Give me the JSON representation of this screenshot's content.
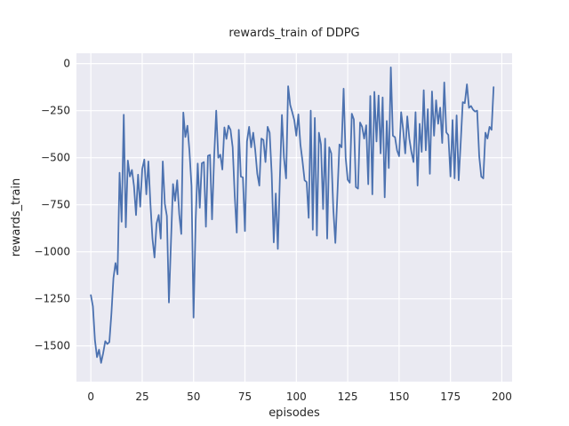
{
  "title": "rewards_train of DDPG",
  "axes": {
    "xlabel": "episodes",
    "ylabel": "rewards_train",
    "x_ticks": [
      {
        "v": 0,
        "label": "0"
      },
      {
        "v": 25,
        "label": "25"
      },
      {
        "v": 50,
        "label": "50"
      },
      {
        "v": 75,
        "label": "75"
      },
      {
        "v": 100,
        "label": "100"
      },
      {
        "v": 125,
        "label": "125"
      },
      {
        "v": 150,
        "label": "150"
      },
      {
        "v": 175,
        "label": "175"
      },
      {
        "v": 200,
        "label": "200"
      }
    ],
    "y_ticks": [
      {
        "v": 0,
        "label": "0"
      },
      {
        "v": -250,
        "label": "−250"
      },
      {
        "v": -500,
        "label": "−500"
      },
      {
        "v": -750,
        "label": "−750"
      },
      {
        "v": -1000,
        "label": "−1000"
      },
      {
        "v": -1250,
        "label": "−1250"
      },
      {
        "v": -1500,
        "label": "−1500"
      }
    ]
  },
  "colors": {
    "line": "#4c72b0",
    "plot_bg": "#eaeaf2",
    "grid": "#ffffff",
    "text": "#262626"
  },
  "chart_data": {
    "type": "line",
    "title": "rewards_train of DDPG",
    "xlabel": "episodes",
    "ylabel": "rewards_train",
    "x_is_episode_index": true,
    "xlim": [
      -7,
      205
    ],
    "ylim": [
      -1690,
      55
    ],
    "grid": true,
    "legend": false,
    "series": [
      {
        "name": "rewards_train",
        "values": [
          -1230,
          -1290,
          -1470,
          -1560,
          -1520,
          -1590,
          -1540,
          -1475,
          -1490,
          -1480,
          -1330,
          -1140,
          -1060,
          -1120,
          -580,
          -840,
          -272,
          -870,
          -515,
          -600,
          -565,
          -650,
          -805,
          -590,
          -760,
          -560,
          -510,
          -695,
          -520,
          -745,
          -930,
          -1030,
          -850,
          -805,
          -930,
          -520,
          -745,
          -810,
          -1270,
          -950,
          -640,
          -730,
          -620,
          -800,
          -905,
          -260,
          -390,
          -330,
          -465,
          -650,
          -1350,
          -830,
          -531,
          -766,
          -530,
          -523,
          -867,
          -490,
          -485,
          -828,
          -492,
          -250,
          -500,
          -484,
          -563,
          -339,
          -400,
          -330,
          -352,
          -445,
          -700,
          -898,
          -352,
          -600,
          -605,
          -890,
          -414,
          -336,
          -445,
          -367,
          -461,
          -586,
          -648,
          -398,
          -406,
          -523,
          -336,
          -367,
          -586,
          -950,
          -690,
          -985,
          -610,
          -273,
          -500,
          -610,
          -120,
          -219,
          -258,
          -300,
          -383,
          -270,
          -430,
          -516,
          -620,
          -630,
          -820,
          -250,
          -883,
          -289,
          -914,
          -367,
          -430,
          -773,
          -398,
          -930,
          -445,
          -477,
          -773,
          -953,
          -695,
          -430,
          -445,
          -133,
          -500,
          -617,
          -633,
          -266,
          -297,
          -656,
          -664,
          -313,
          -336,
          -398,
          -328,
          -641,
          -172,
          -695,
          -150,
          -414,
          -170,
          -477,
          -180,
          -711,
          -305,
          -555,
          -20,
          -383,
          -391,
          -461,
          -492,
          -258,
          -352,
          -477,
          -281,
          -398,
          -469,
          -523,
          -258,
          -648,
          -320,
          -469,
          -141,
          -461,
          -242,
          -586,
          -148,
          -383,
          -195,
          -320,
          -234,
          -422,
          -100,
          -365,
          -380,
          -600,
          -300,
          -610,
          -275,
          -620,
          -420,
          -205,
          -210,
          -110,
          -235,
          -225,
          -245,
          -255,
          -250,
          -492,
          -600,
          -610,
          -367,
          -398,
          -336,
          -352,
          -125
        ]
      }
    ]
  }
}
